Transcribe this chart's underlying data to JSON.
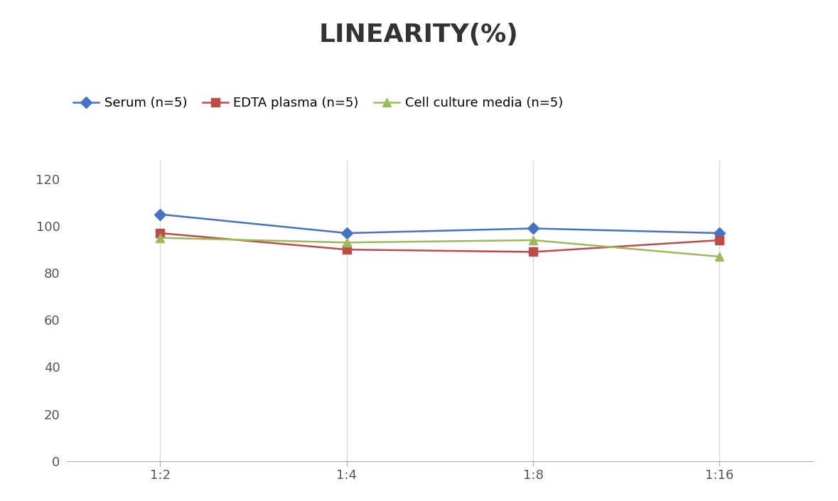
{
  "title": "LINEARITY(%)",
  "x_labels": [
    "1:2",
    "1:4",
    "1:8",
    "1:16"
  ],
  "x_positions": [
    0,
    1,
    2,
    3
  ],
  "series": [
    {
      "label": "Serum (n=5)",
      "color": "#4472C4",
      "marker": "D",
      "values": [
        105,
        97,
        99,
        97
      ]
    },
    {
      "label": "EDTA plasma (n=5)",
      "color": "#BE4B48",
      "marker": "s",
      "values": [
        97,
        90,
        89,
        94
      ]
    },
    {
      "label": "Cell culture media (n=5)",
      "color": "#9BBB59",
      "marker": "^",
      "values": [
        95,
        93,
        94,
        87
      ]
    }
  ],
  "ylim": [
    0,
    128
  ],
  "yticks": [
    0,
    20,
    40,
    60,
    80,
    100,
    120
  ],
  "background_color": "#ffffff",
  "grid_color": "#d9d9d9",
  "title_fontsize": 26,
  "legend_fontsize": 13,
  "tick_fontsize": 13
}
